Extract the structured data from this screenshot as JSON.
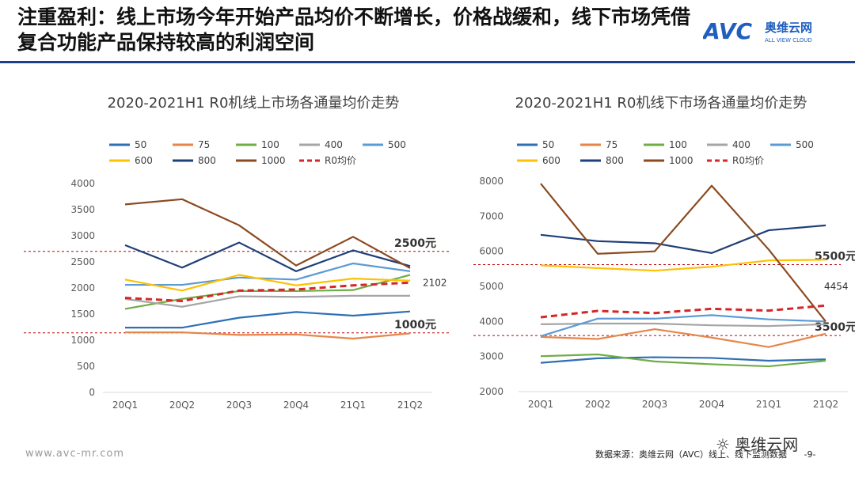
{
  "header": {
    "title": "注重盈利：线上市场今年开始产品均价不断增长，价格战缓和，线下市场凭借复合功能产品保持较高的利润空间",
    "logo_text": "AVC",
    "logo_cn": "奥维云网",
    "logo_en": "ALL VIEW CLOUD"
  },
  "colors": {
    "rule": "#1f3f8f",
    "s50": "#2e6fb5",
    "s75": "#e6864a",
    "s100": "#70ad47",
    "s400": "#a5a5a5",
    "s500": "#5b9bd5",
    "s600": "#ffc000",
    "s800": "#1f3f78",
    "s1000": "#8b4a1f",
    "avg": "#d62728",
    "ref": "#c00000"
  },
  "chart_data": [
    {
      "type": "line",
      "title": "2020-2021H1 R0机线上市场各通量均价走势",
      "categories": [
        "20Q1",
        "20Q2",
        "20Q3",
        "20Q4",
        "21Q1",
        "21Q2"
      ],
      "ylim": [
        0,
        4000
      ],
      "yticks": [
        0,
        500,
        1000,
        1500,
        2000,
        2500,
        3000,
        3500,
        4000
      ],
      "series": [
        {
          "name": "50",
          "color": "#2e6fb5",
          "values": [
            1240,
            1240,
            1430,
            1540,
            1470,
            1550
          ]
        },
        {
          "name": "75",
          "color": "#e6864a",
          "values": [
            1150,
            1150,
            1100,
            1110,
            1030,
            1130
          ]
        },
        {
          "name": "100",
          "color": "#70ad47",
          "values": [
            1600,
            1790,
            1940,
            1940,
            1960,
            2250
          ]
        },
        {
          "name": "400",
          "color": "#a5a5a5",
          "values": [
            1790,
            1640,
            1840,
            1830,
            1850,
            1850
          ]
        },
        {
          "name": "500",
          "color": "#5b9bd5",
          "values": [
            2060,
            2060,
            2200,
            2160,
            2470,
            2320
          ]
        },
        {
          "name": "600",
          "color": "#ffc000",
          "values": [
            2160,
            1950,
            2250,
            2050,
            2180,
            2140
          ]
        },
        {
          "name": "800",
          "color": "#1f3f78",
          "values": [
            2820,
            2390,
            2870,
            2320,
            2720,
            2420
          ]
        },
        {
          "name": "1000",
          "color": "#8b4a1f",
          "values": [
            3600,
            3700,
            3200,
            2430,
            2980,
            2380
          ]
        },
        {
          "name": "R0均价",
          "color": "#d62728",
          "dashed": true,
          "values": [
            1810,
            1750,
            1950,
            1970,
            2050,
            2102
          ]
        }
      ],
      "reference_lines": [
        {
          "value": 2700,
          "label": "2500元"
        },
        {
          "value": 1140,
          "label": "1000元"
        }
      ],
      "annotation": "2102"
    },
    {
      "type": "line",
      "title": "2020-2021H1 R0机线下市场各通量均价走势",
      "categories": [
        "20Q1",
        "20Q2",
        "20Q3",
        "20Q4",
        "21Q1",
        "21Q2"
      ],
      "ylim": [
        2000,
        8000
      ],
      "yticks": [
        2000,
        3000,
        4000,
        5000,
        6000,
        7000,
        8000
      ],
      "series": [
        {
          "name": "50",
          "color": "#2e6fb5",
          "values": [
            2820,
            2950,
            2980,
            2960,
            2880,
            2920
          ]
        },
        {
          "name": "75",
          "color": "#e6864a",
          "values": [
            3560,
            3500,
            3780,
            3540,
            3270,
            3650
          ]
        },
        {
          "name": "100",
          "color": "#70ad47",
          "values": [
            3010,
            3060,
            2860,
            2780,
            2720,
            2880
          ]
        },
        {
          "name": "400",
          "color": "#a5a5a5",
          "values": [
            3920,
            3940,
            3940,
            3890,
            3870,
            3920
          ]
        },
        {
          "name": "500",
          "color": "#5b9bd5",
          "values": [
            3580,
            4080,
            4080,
            4180,
            4060,
            4000
          ]
        },
        {
          "name": "600",
          "color": "#ffc000",
          "values": [
            5600,
            5520,
            5450,
            5560,
            5740,
            5760
          ]
        },
        {
          "name": "800",
          "color": "#1f3f78",
          "values": [
            6470,
            6290,
            6230,
            5950,
            6600,
            6740
          ]
        },
        {
          "name": "1000",
          "color": "#8b4a1f",
          "values": [
            7930,
            5930,
            6000,
            7870,
            6050,
            4000
          ]
        },
        {
          "name": "R0均价",
          "color": "#d62728",
          "dashed": true,
          "values": [
            4120,
            4300,
            4240,
            4360,
            4310,
            4454
          ]
        }
      ],
      "reference_lines": [
        {
          "value": 5620,
          "label": "5500元"
        },
        {
          "value": 3600,
          "label": "3500元"
        }
      ],
      "annotation": "4454"
    }
  ],
  "footer": {
    "website": "www.avc-mr.com",
    "source": "数据来源：奥维云网（AVC）线上、线下监测数据",
    "page": "-9-",
    "wechat": "奥维云网"
  }
}
